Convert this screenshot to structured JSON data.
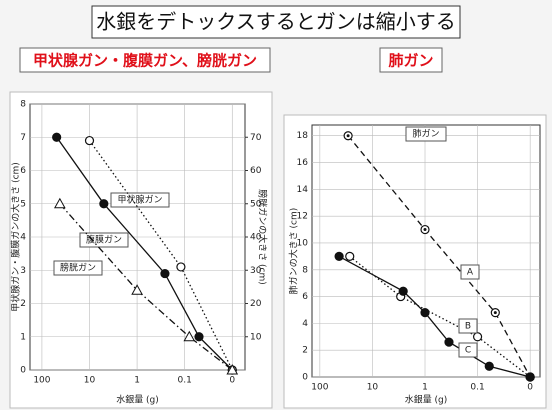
{
  "header": {
    "title": "水銀をデトックスするとガンは縮小する",
    "label_left": "甲状腺ガン・腹膜ガン、膀胱ガン",
    "label_right": "肺ガン"
  },
  "chart_data": [
    {
      "type": "line",
      "xscale": "log",
      "xlim": [
        178,
        0.0054
      ],
      "ylim": [
        0,
        8
      ],
      "y2lim": [
        0,
        80
      ],
      "xticks": [
        100,
        10,
        1,
        0.1,
        {
          "value": 0.01,
          "label": "0"
        }
      ],
      "yticks": [
        0,
        1,
        2,
        3,
        4,
        5,
        6,
        7,
        8
      ],
      "y2ticks": [
        10,
        20,
        30,
        40,
        50,
        60,
        70
      ],
      "xlabel": "水銀量 (g)",
      "ylabel": "甲状腺ガン・腹膜ガンの大きさ (cm)",
      "y2label": "膀胱ガンの大きさ (cm)",
      "grid": true,
      "series": [
        {
          "name": "甲状腺ガン",
          "color": "#111111",
          "marker": "filled-circle",
          "dash": "solid",
          "x": [
            49,
            5,
            0.26,
            0.05,
            0.01
          ],
          "values": [
            7,
            5,
            2.9,
            1,
            0
          ]
        },
        {
          "name": "腹膜ガン",
          "color": "#111111",
          "marker": "open-circle",
          "dash": "dotted",
          "x": [
            10,
            0.12,
            0.01
          ],
          "values": [
            6.9,
            3.1,
            0
          ]
        },
        {
          "name": "膀胱ガン",
          "color": "#111111",
          "marker": "open-triangle",
          "dash": "dashdot",
          "axis": "y2",
          "x": [
            42,
            1,
            0.08,
            0.01
          ],
          "values": [
            50,
            24,
            10,
            0
          ]
        }
      ]
    },
    {
      "type": "line",
      "xscale": "log",
      "xlim": [
        141,
        0.0065
      ],
      "ylim": [
        0,
        18.8
      ],
      "xticks": [
        100,
        10,
        1,
        0.1,
        {
          "value": 0.01,
          "label": "0"
        }
      ],
      "yticks": [
        0,
        2,
        4,
        6,
        8,
        10,
        12,
        14,
        16,
        18
      ],
      "title": "肺ガン",
      "xlabel": "水銀量 (g)",
      "ylabel": "肺ガンの大きさ (cm)",
      "grid": true,
      "series": [
        {
          "name": "A",
          "color": "#111111",
          "marker": "dot-circle",
          "dash": "dashed",
          "x": [
            29,
            1,
            0.046,
            0.01
          ],
          "values": [
            18,
            11,
            4.8,
            0
          ]
        },
        {
          "name": "B",
          "color": "#111111",
          "marker": "open-circle",
          "dash": "dotted",
          "x": [
            27,
            2.9,
            0.1,
            0.01
          ],
          "values": [
            9,
            6,
            3,
            0
          ]
        },
        {
          "name": "C",
          "color": "#111111",
          "marker": "filled-circle",
          "dash": "solid",
          "x": [
            43,
            2.6,
            1,
            0.35,
            0.06,
            0.01
          ],
          "values": [
            9,
            6.4,
            4.8,
            2.6,
            0.8,
            0
          ]
        }
      ]
    }
  ]
}
